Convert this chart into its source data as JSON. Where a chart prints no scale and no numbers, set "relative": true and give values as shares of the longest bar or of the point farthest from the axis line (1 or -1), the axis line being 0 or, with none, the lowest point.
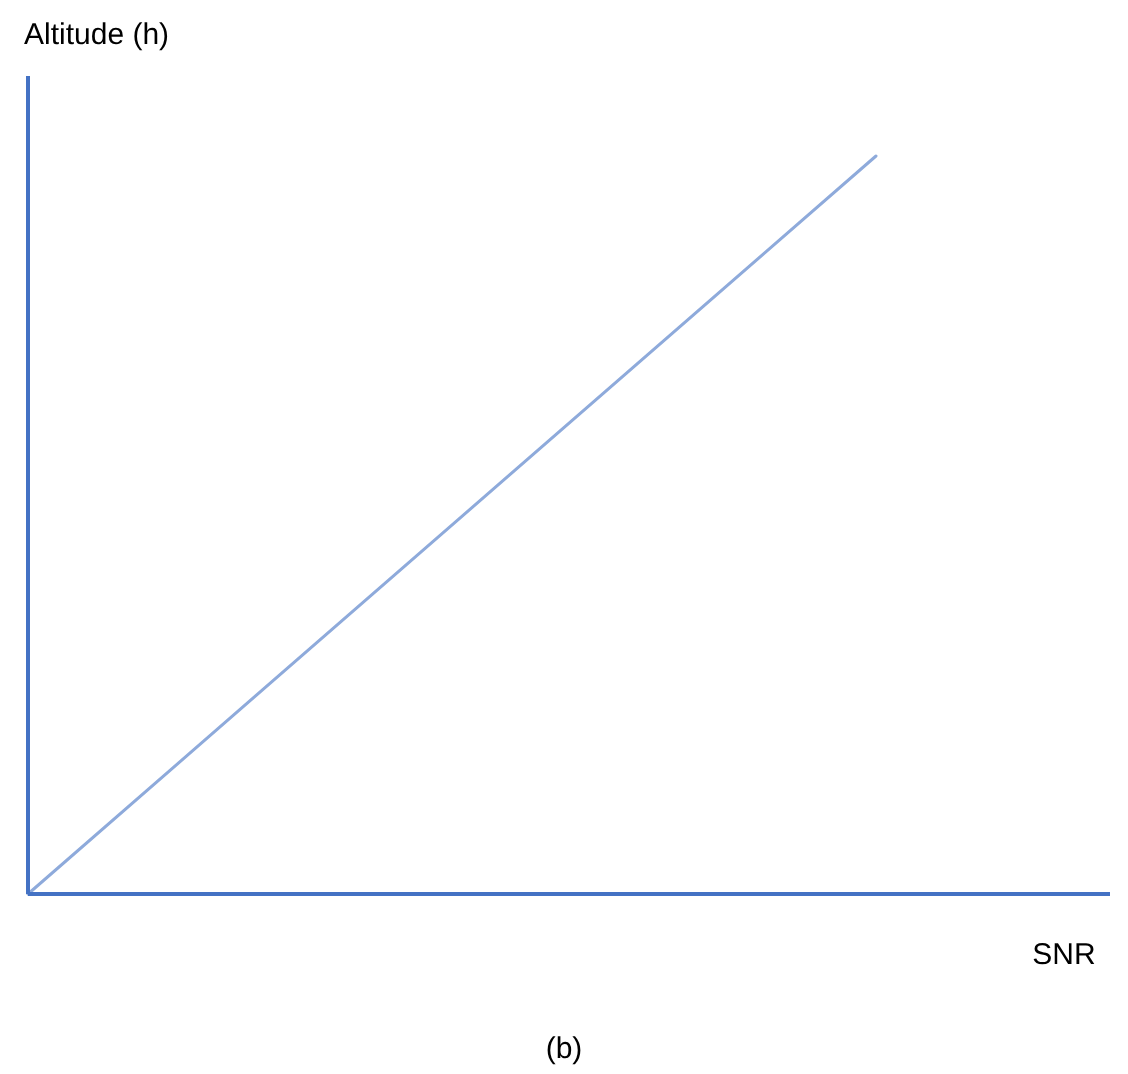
{
  "chart_data": {
    "type": "line",
    "relative": true,
    "xlabel": "SNR",
    "ylabel": "Altitude (h)",
    "annotations": [
      "(b)"
    ],
    "categories": [
      null,
      null
    ],
    "series": [
      {
        "color": "#8eaadb",
        "values": [
          0,
          1
        ]
      }
    ]
  }
}
